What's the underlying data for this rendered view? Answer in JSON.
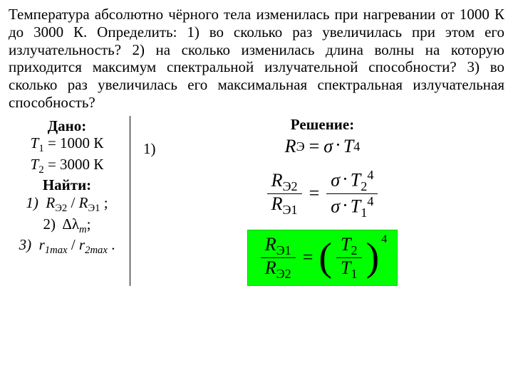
{
  "problem": "Температура абсолютно чёрного тела изменилась при нагревании от 1000 К до 3000 К. Определить: 1) во сколько раз увеличилась при этом его излучательность? 2) на сколько изменилась длина волны на которую приходится максимум спектральной излучательной способности? 3) во сколько раз увеличилась его максимальная спектральная излучательная способность?",
  "given": {
    "title": "Дано:",
    "t1_sym": "T",
    "t1_sub": "1",
    "t1_eq": " = 1000 К",
    "t2_sym": "T",
    "t2_sub": "2",
    "t2_eq": " = 3000 К",
    "find_title": "Найти:",
    "f1_pre": "1)",
    "f1_a": "R",
    "f1_a_sub": "Э2",
    "f1_div": " / ",
    "f1_b": "R",
    "f1_b_sub": "Э1",
    "f1_tail": " ;",
    "f2_pre": "2)",
    "f2_sym": "Δλ",
    "f2_sub": "m",
    "f2_tail": ";",
    "f3_pre": "3)",
    "f3_a": "r",
    "f3_a_sub": "1max",
    "f3_div": " / ",
    "f3_b": "r",
    "f3_b_sub": "2max",
    "f3_tail": " ."
  },
  "solution": {
    "title": "Решение:",
    "part1": "1)",
    "colors": {
      "highlight_bg": "#00ff00",
      "highlight_border": "#00cc00"
    },
    "eq1": {
      "R": "R",
      "R_sub": "Э",
      "sigma": "σ",
      "T": "T",
      "pow": "4"
    },
    "eq2": {
      "num_l": "R",
      "num_l_sub": "Э2",
      "den_l": "R",
      "den_l_sub": "Э1",
      "sigma": "σ",
      "num_r": "T",
      "num_r_sub": "2",
      "num_r_pow": "4",
      "den_r": "T",
      "den_r_sub": "1",
      "den_r_pow": "4"
    },
    "eq3": {
      "num_l": "R",
      "num_l_sub": "Э1",
      "den_l": "R",
      "den_l_sub": "Э2",
      "num_r": "T",
      "num_r_sub": "2",
      "den_r": "T",
      "den_r_sub": "1",
      "pow": "4"
    }
  }
}
